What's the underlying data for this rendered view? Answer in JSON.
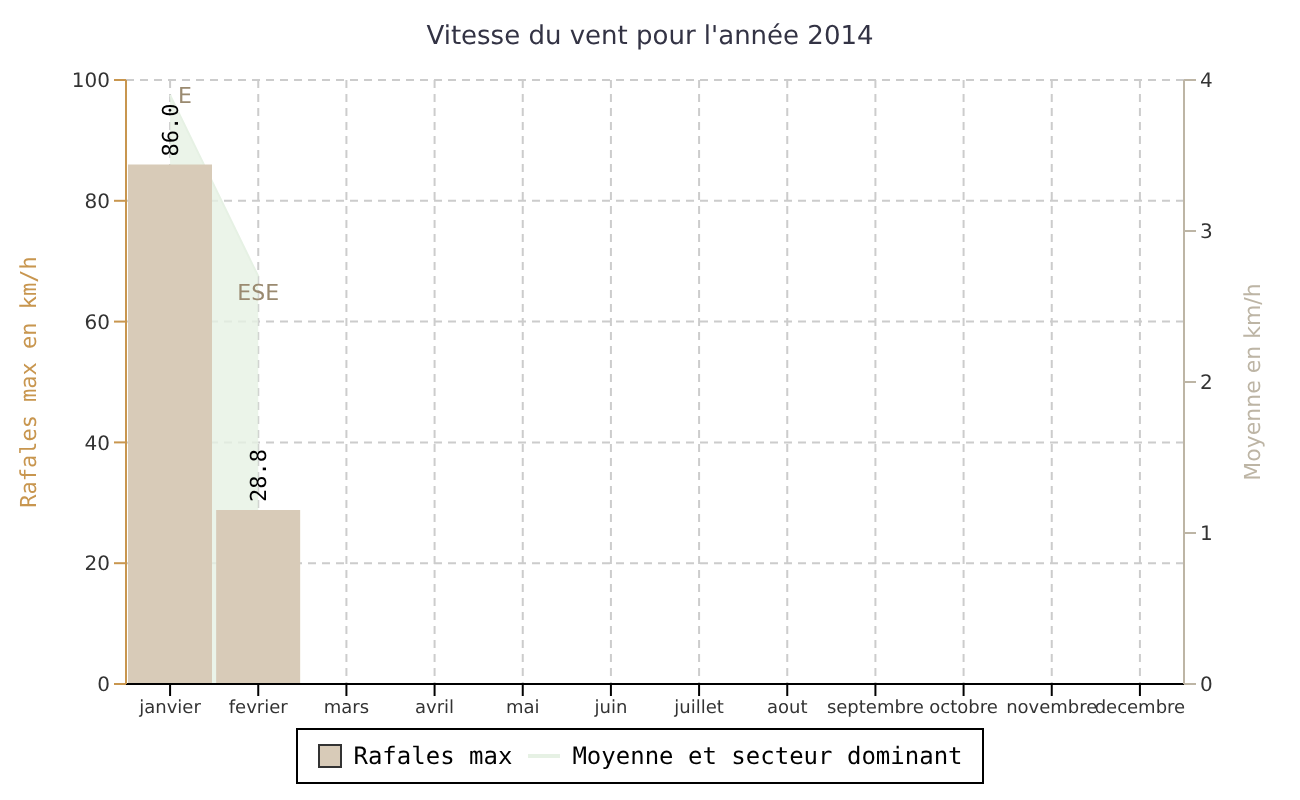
{
  "chart_data": {
    "type": "bar",
    "title": "Vitesse du vent pour l'année 2014",
    "ylabel": "Rafales max en km/h",
    "y2label": "Moyenne en km/h",
    "categories": [
      "janvier",
      "fevrier",
      "mars",
      "avril",
      "mai",
      "juin",
      "juillet",
      "aout",
      "septembre",
      "octobre",
      "novembre",
      "decembre"
    ],
    "series": [
      {
        "name": "Rafales max",
        "color": "#d8cbb8",
        "values": [
          86.0,
          28.8,
          null,
          null,
          null,
          null,
          null,
          null,
          null,
          null,
          null,
          null
        ],
        "value_labels": [
          "86.0",
          "28.8",
          null,
          null,
          null,
          null,
          null,
          null,
          null,
          null,
          null,
          null
        ]
      },
      {
        "name": "Moyenne et secteur dominant",
        "type": "area",
        "axis": "y2",
        "color": "#e6f1e4",
        "values": [
          3.9,
          2.7,
          null,
          null,
          null,
          null,
          null,
          null,
          null,
          null,
          null,
          null
        ]
      }
    ],
    "annotations": [
      "E",
      "ESE"
    ],
    "ylim": [
      0,
      100
    ],
    "yticks": [
      0,
      20,
      40,
      60,
      80,
      100
    ],
    "y2lim": [
      0,
      4
    ],
    "y2ticks": [
      0,
      1,
      2,
      3,
      4
    ],
    "grid": true,
    "legend": "bottom"
  }
}
